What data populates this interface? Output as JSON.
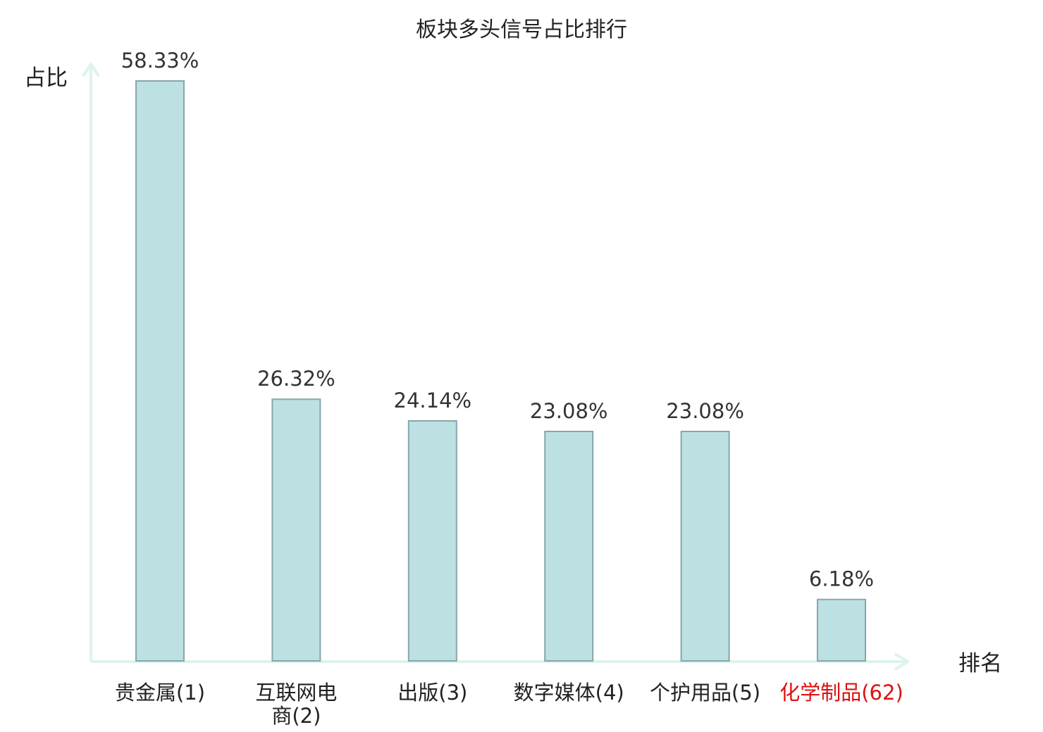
{
  "chart_data": {
    "type": "bar",
    "title": "板块多头信号占比排行",
    "ylabel": "占比",
    "xlabel": "排名",
    "categories": [
      [
        "贵金属(1)"
      ],
      [
        "互联网电",
        "商(2)"
      ],
      [
        "出版(3)"
      ],
      [
        "数字媒体(4)"
      ],
      [
        "个护用品(5)"
      ],
      [
        "化学制品(62)"
      ]
    ],
    "values": [
      58.33,
      26.32,
      24.14,
      23.08,
      23.08,
      6.18
    ],
    "value_labels": [
      "58.33%",
      "26.32%",
      "24.14%",
      "23.08%",
      "23.08%",
      "6.18%"
    ],
    "ylim": [
      0,
      58.33
    ],
    "grid": false,
    "colors": {
      "bar_fill": "#bde0e3",
      "bar_stroke": "#86a6ab",
      "axis": "#dff2ee",
      "tick_text": "#222222",
      "highlight_text": "#dd1111"
    },
    "highlight_index": 5
  }
}
